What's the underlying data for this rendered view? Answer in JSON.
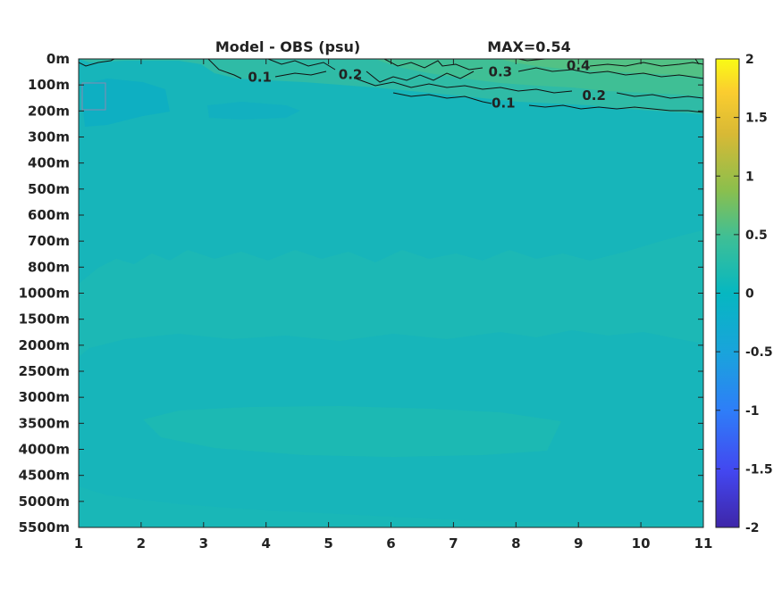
{
  "chart_data": {
    "type": "heatmap",
    "title": "Model - OBS (psu)",
    "max_label": "MAX=0.54",
    "x_ticks": [
      "1",
      "2",
      "3",
      "4",
      "5",
      "6",
      "7",
      "8",
      "9",
      "10",
      "11"
    ],
    "x_range": [
      1,
      11
    ],
    "y_ticks": [
      "0m",
      "100m",
      "200m",
      "300m",
      "400m",
      "500m",
      "600m",
      "700m",
      "800m",
      "1000m",
      "1500m",
      "2000m",
      "2500m",
      "3000m",
      "3500m",
      "4000m",
      "4500m",
      "5000m",
      "5500m"
    ],
    "colorbar": {
      "range": [
        -2,
        2
      ],
      "ticks": [
        "2",
        "1.5",
        "1",
        "0.5",
        "0",
        "-0.5",
        "-1",
        "-1.5",
        "-2"
      ],
      "tick_values": [
        2,
        1.5,
        1,
        0.5,
        0,
        -0.5,
        -1,
        -1.5,
        -2
      ],
      "colormap": "parula"
    },
    "contour_labels": [
      {
        "text": "0.1",
        "x": 3.9,
        "depth_index": 0.7
      },
      {
        "text": "0.2",
        "x": 5.35,
        "depth_index": 0.6
      },
      {
        "text": "0.3",
        "x": 7.75,
        "depth_index": 0.5
      },
      {
        "text": "0.4",
        "x": 9.0,
        "depth_index": 0.25
      },
      {
        "text": "0.2",
        "x": 9.25,
        "depth_index": 1.4
      },
      {
        "text": "0.1",
        "x": 7.8,
        "depth_index": 1.7
      }
    ]
  },
  "colors": {
    "background_field": "#17b5ba",
    "lighter_band": "#1fbab2",
    "surface_positive": "#3fbf95",
    "surface_strong": "#56c281",
    "cool_patch": "#0eafc2",
    "contour_line": "#111111"
  }
}
